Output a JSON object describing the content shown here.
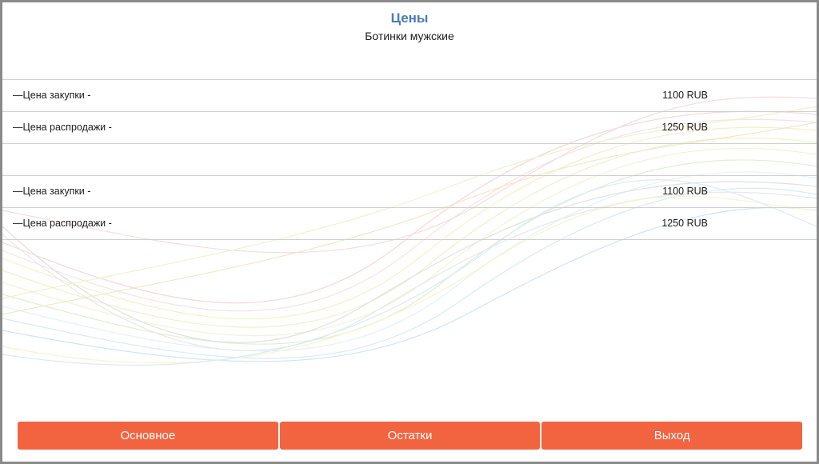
{
  "header": {
    "title": "Цены",
    "subtitle": "Ботинки мужские"
  },
  "price_rows": [
    {
      "label": "—Цена закупки -",
      "value": "1100 RUB"
    },
    {
      "label": "—Цена распродажи -",
      "value": "1250 RUB"
    },
    {
      "label": "",
      "value": ""
    },
    {
      "label": "—Цена закупки -",
      "value": "1100 RUB"
    },
    {
      "label": "—Цена распродажи -",
      "value": "1250 RUB"
    }
  ],
  "buttons": {
    "main_label": "Основное",
    "stock_label": "Остатки",
    "exit_label": "Выход"
  },
  "colors": {
    "title": "#4a7ab8",
    "button": "#f26440"
  }
}
